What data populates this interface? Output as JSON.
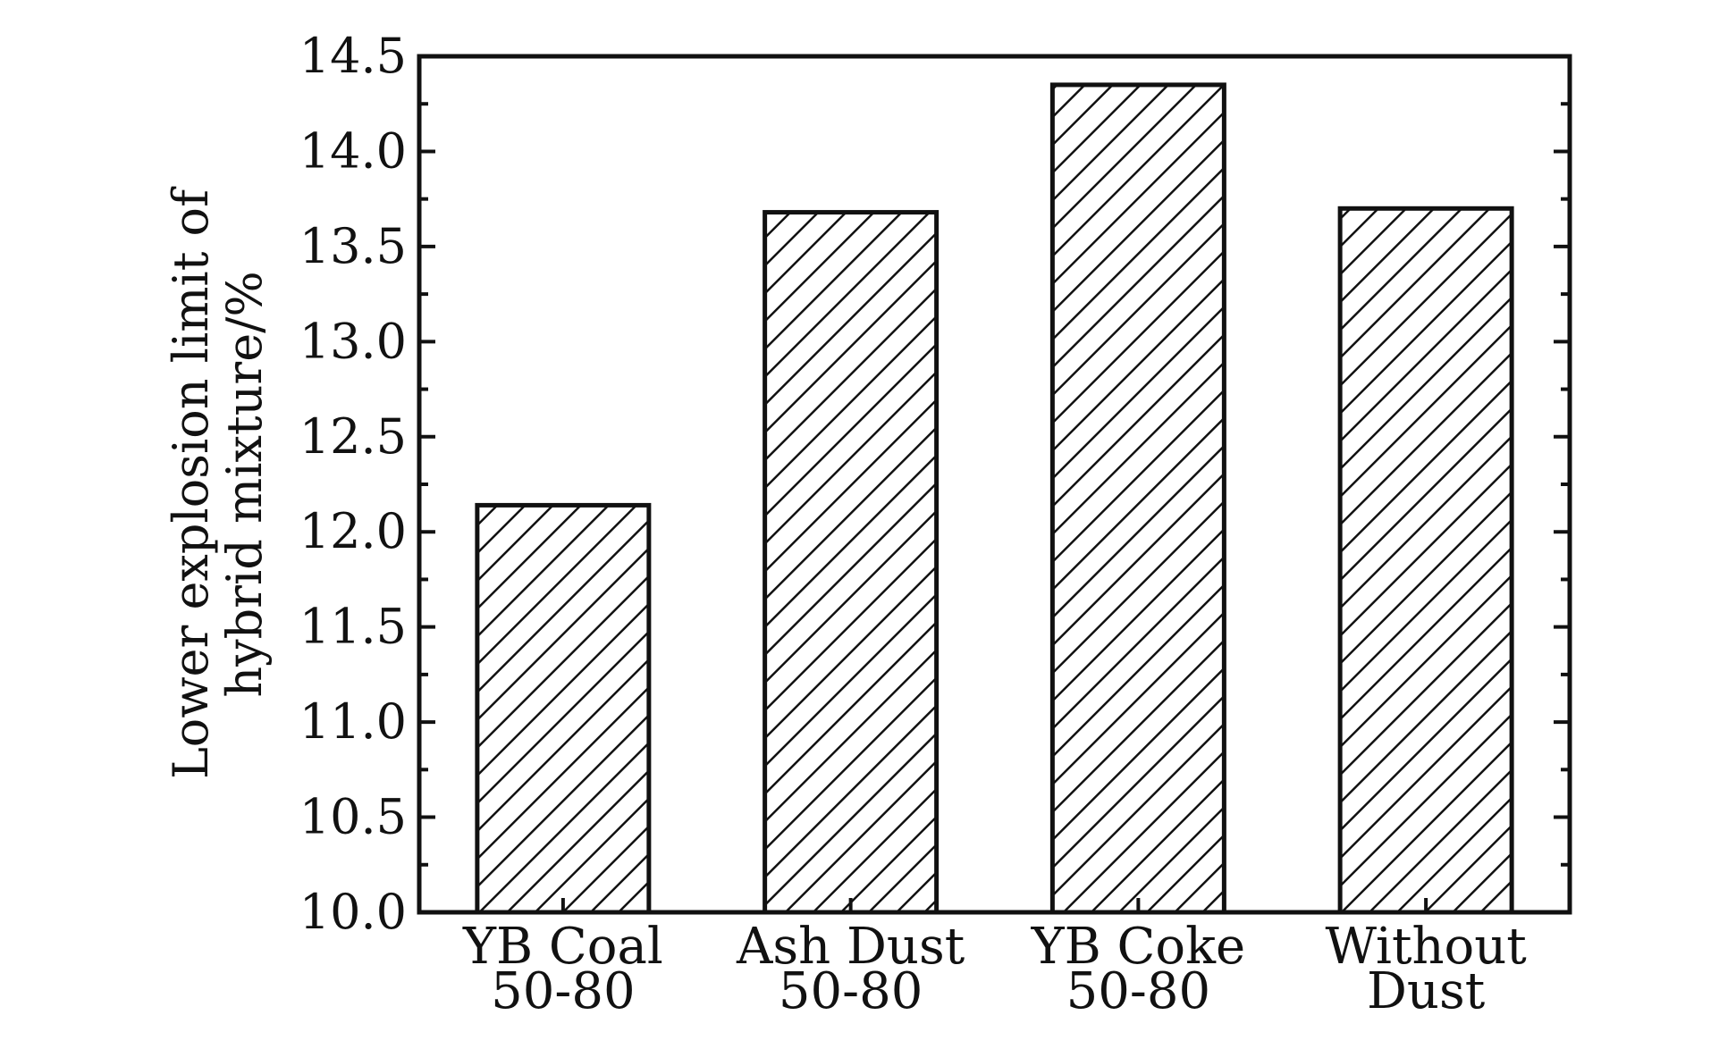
{
  "chart_data": {
    "type": "bar",
    "title": "",
    "xlabel": "",
    "ylabel": "Lower explosion limit of\nhybrid mixture/%",
    "ylabel_lines": [
      "Lower explosion limit of",
      "hybrid mixture/%"
    ],
    "categories": [
      [
        "YB Coal",
        "50-80"
      ],
      [
        "Ash Dust",
        "50-80"
      ],
      [
        "YB Coke",
        "50-80"
      ],
      [
        "Without",
        "Dust"
      ]
    ],
    "values": [
      12.14,
      13.68,
      14.35,
      13.7
    ],
    "ylim": [
      10.0,
      14.5
    ],
    "yticks": [
      "10.0",
      "10.5",
      "11.0",
      "11.5",
      "12.0",
      "12.5",
      "13.0",
      "13.5",
      "14.0",
      "14.5"
    ],
    "bar_fill": "hatched diagonal",
    "colors": {
      "bar_stroke": "#111111",
      "background": "#ffffff"
    },
    "grid": false,
    "legend": "none"
  }
}
